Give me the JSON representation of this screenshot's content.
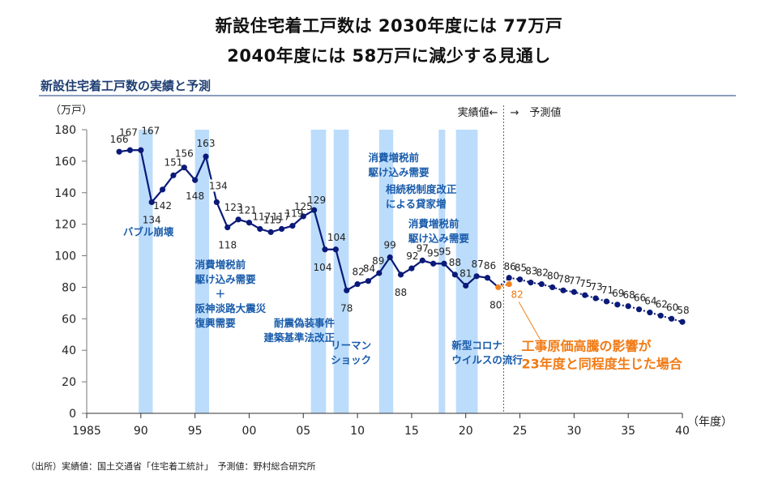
{
  "header": {
    "title_line1": "新設住宅着工戸数は 2030年度には 77万戸",
    "title_line2": "2040年度には 58万戸に減少する見通し",
    "subtitle": "新設住宅着工戸数の実績と予測"
  },
  "source": "（出所）実績値：国土交通省「住宅着工統計」　予測値：野村総合研究所",
  "colors": {
    "actual": "#0b1a78",
    "forecast": "#0b1a78",
    "alternate": "#f0821e",
    "band": "#bcdcfb",
    "annotation": "#1a5cab",
    "alternate_text": "#f07a14"
  },
  "chart_data": {
    "type": "line",
    "title": "新設住宅着工戸数の実績と予測",
    "xlabel": "（年度）",
    "ylabel": "（万戸）",
    "xlim": [
      1985,
      2040
    ],
    "ylim": [
      0,
      180
    ],
    "x_ticks": [
      1985,
      1990,
      1995,
      2000,
      2005,
      2010,
      2015,
      2020,
      2025,
      2030,
      2035,
      2040
    ],
    "x_tick_labels": [
      "1985",
      "90",
      "95",
      "00",
      "05",
      "10",
      "15",
      "20",
      "25",
      "30",
      "35",
      "40"
    ],
    "y_ticks": [
      0,
      20,
      40,
      60,
      80,
      100,
      120,
      140,
      160,
      180
    ],
    "y_tick_labels": [
      "0",
      "20",
      "40",
      "60",
      "80",
      "100",
      "120",
      "140",
      "160",
      "180"
    ],
    "grid": false,
    "divider": {
      "year": 2023.5,
      "left_label": "実績値←",
      "right_label": "→　予測値"
    },
    "series": [
      {
        "name": "実績値",
        "style": "solid",
        "x": [
          1988,
          1989,
          1990,
          1991,
          1992,
          1993,
          1994,
          1995,
          1996,
          1997,
          1998,
          1999,
          2000,
          2001,
          2002,
          2003,
          2004,
          2005,
          2006,
          2007,
          2008,
          2009,
          2010,
          2011,
          2012,
          2013,
          2014,
          2015,
          2016,
          2017,
          2018,
          2019,
          2020,
          2021,
          2022,
          2023
        ],
        "values": [
          166,
          167,
          167,
          134,
          142,
          151,
          156,
          148,
          163,
          134,
          118,
          123,
          121,
          117,
          115,
          117,
          119,
          125,
          129,
          104,
          104,
          78,
          82,
          84,
          89,
          99,
          88,
          92,
          97,
          95,
          95,
          88,
          81,
          87,
          86,
          80
        ]
      },
      {
        "name": "予測値",
        "style": "dotted",
        "x": [
          2024,
          2025,
          2026,
          2027,
          2028,
          2029,
          2030,
          2031,
          2032,
          2033,
          2034,
          2035,
          2036,
          2037,
          2038,
          2039,
          2040
        ],
        "values": [
          86,
          85,
          83,
          82,
          80,
          78,
          77,
          75,
          73,
          71,
          69,
          68,
          66,
          64,
          62,
          60,
          58
        ]
      },
      {
        "name": "工事原価高騰の影響が23年度と同程度生じた場合",
        "style": "dotted",
        "x": [
          2023,
          2024
        ],
        "values": [
          80,
          82
        ]
      }
    ],
    "bands": [
      {
        "from": 1989.8,
        "to": 1991.1
      },
      {
        "from": 1995.0,
        "to": 1996.3
      },
      {
        "from": 2005.7,
        "to": 2007.1
      },
      {
        "from": 2007.8,
        "to": 2009.2
      },
      {
        "from": 2012.0,
        "to": 2013.3
      },
      {
        "from": 2017.5,
        "to": 2018.1
      },
      {
        "from": 2019.1,
        "to": 2021.1
      }
    ],
    "annotations": [
      {
        "lines": [
          "バブル崩壊"
        ],
        "year": 1990.7,
        "value": 113,
        "anchor": "middle"
      },
      {
        "lines": [
          "消費増税前",
          "駆け込み需要",
          "　　＋",
          "阪神淡路大震災",
          "復興需要"
        ],
        "year": 1995.0,
        "value": 92,
        "anchor": "start"
      },
      {
        "lines": [
          "耐震偽装事件",
          "建築基準法改正"
        ],
        "year": 2007.9,
        "value": 55,
        "anchor": "end"
      },
      {
        "lines": [
          "リーマン",
          "ショック"
        ],
        "year": 2009.4,
        "value": 41,
        "anchor": "middle"
      },
      {
        "lines": [
          "消費増税前",
          "駆け込み需要"
        ],
        "year": 2011.0,
        "value": 160,
        "anchor": "start"
      },
      {
        "lines": [
          "相続税制度改正",
          "による貸家増"
        ],
        "year": 2012.6,
        "value": 140,
        "anchor": "start"
      },
      {
        "lines": [
          "消費増税前",
          "駆け込み需要"
        ],
        "year": 2014.7,
        "value": 118,
        "anchor": "start"
      },
      {
        "lines": [
          "新型コロナ",
          "ウイルスの流行"
        ],
        "year": 2018.7,
        "value": 41,
        "anchor": "start"
      }
    ],
    "callout": {
      "lines": [
        "工事原価高騰の影響が",
        "23年度と同程度生じた場合"
      ],
      "year": 2025.0,
      "value": 41
    }
  }
}
